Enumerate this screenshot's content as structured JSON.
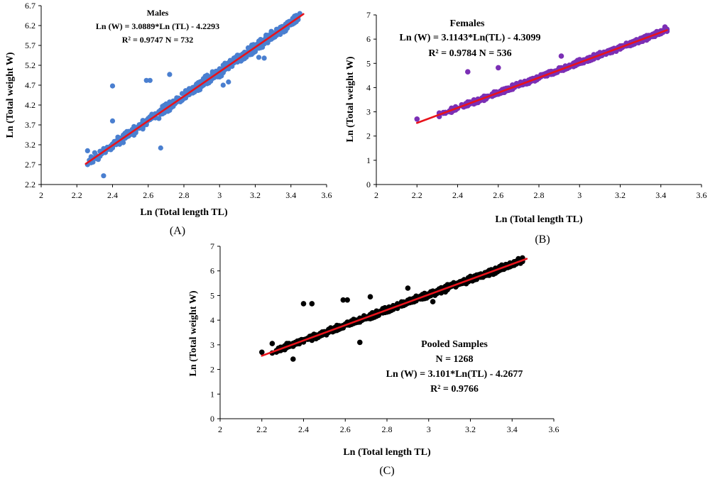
{
  "chart_data": [
    {
      "type": "scatter",
      "panel": "(A)",
      "xlabel": "Ln (Total length TL)",
      "ylabel": "Ln (Total weight W)",
      "xlim": [
        2,
        3.6
      ],
      "ylim": [
        2.2,
        6.7
      ],
      "xticks": [
        "2",
        "2.2",
        "2.4",
        "2.6",
        "2.8",
        "3",
        "3.2",
        "3.4",
        "3.6"
      ],
      "yticks": [
        "2.2",
        "2.7",
        "3.2",
        "3.7",
        "4.2",
        "4.7",
        "5.2",
        "5.7",
        "6.2",
        "6.7"
      ],
      "annotations": [
        "Males",
        "Ln (W) = 3.0889*Ln (TL) - 4.2293",
        "R² = 0.9747  N = 732"
      ],
      "point_color": "#4a7fd0",
      "line_color": "#e8131b",
      "regression": {
        "slope": 3.0889,
        "intercept": -4.2293,
        "x_range": [
          2.25,
          3.47
        ]
      },
      "series": [
        {
          "name": "Males",
          "x_range": [
            2.25,
            3.45
          ],
          "residual_sd": 0.09
        }
      ],
      "outliers": [
        {
          "x": 2.4,
          "y": 4.68
        },
        {
          "x": 2.4,
          "y": 3.8
        },
        {
          "x": 2.35,
          "y": 2.42
        },
        {
          "x": 2.59,
          "y": 4.82
        },
        {
          "x": 2.61,
          "y": 4.82
        },
        {
          "x": 2.67,
          "y": 3.12
        },
        {
          "x": 2.72,
          "y": 4.97
        },
        {
          "x": 2.26,
          "y": 3.05
        },
        {
          "x": 2.3,
          "y": 3.0
        },
        {
          "x": 3.02,
          "y": 4.7
        },
        {
          "x": 3.05,
          "y": 4.78
        },
        {
          "x": 3.22,
          "y": 5.4
        },
        {
          "x": 3.25,
          "y": 5.38
        },
        {
          "x": 2.93,
          "y": 4.95
        }
      ]
    },
    {
      "type": "scatter",
      "panel": "(B)",
      "xlabel": "Ln (Total length TL)",
      "ylabel": "Ln (Total weight W)",
      "xlim": [
        2,
        3.6
      ],
      "ylim": [
        0,
        7
      ],
      "xticks": [
        "2",
        "2.2",
        "2.4",
        "2.6",
        "2.8",
        "3",
        "3.2",
        "3.4",
        "3.6"
      ],
      "yticks": [
        "0",
        "1",
        "2",
        "3",
        "4",
        "5",
        "6",
        "7"
      ],
      "annotations": [
        "Females",
        "Ln (W) = 3.1143*Ln(TL) - 4.3099",
        "R² = 0.9784 N =  536"
      ],
      "point_color": "#7b2fb5",
      "line_color": "#e8131b",
      "regression": {
        "slope": 3.1143,
        "intercept": -4.3099,
        "x_range": [
          2.2,
          3.43
        ]
      },
      "series": [
        {
          "name": "Females",
          "x_range": [
            2.3,
            3.43
          ],
          "residual_sd": 0.08
        }
      ],
      "outliers": [
        {
          "x": 2.2,
          "y": 2.7
        },
        {
          "x": 2.45,
          "y": 4.65
        },
        {
          "x": 2.6,
          "y": 4.82
        },
        {
          "x": 2.91,
          "y": 5.3
        },
        {
          "x": 3.42,
          "y": 6.5
        }
      ]
    },
    {
      "type": "scatter",
      "panel": "(C)",
      "xlabel": "Ln (Total length TL)",
      "ylabel": "Ln (Total weight W)",
      "xlim": [
        2,
        3.6
      ],
      "ylim": [
        0,
        7
      ],
      "xticks": [
        "2",
        "2.2",
        "2.4",
        "2.6",
        "2.8",
        "3",
        "3.2",
        "3.4",
        "3.6"
      ],
      "yticks": [
        "0",
        "1",
        "2",
        "3",
        "4",
        "5",
        "6",
        "7"
      ],
      "annotations": [
        "Pooled Samples",
        "N = 1268",
        "Ln (W) = 3.101*Ln(TL) - 4.2677",
        "R² = 0.9766"
      ],
      "point_color": "#000000",
      "line_color": "#e8131b",
      "regression": {
        "slope": 3.101,
        "intercept": -4.2677,
        "x_range": [
          2.2,
          3.47
        ]
      },
      "series": [
        {
          "name": "Pooled Samples",
          "x_range": [
            2.25,
            3.45
          ],
          "residual_sd": 0.09
        }
      ],
      "outliers": [
        {
          "x": 2.2,
          "y": 2.7
        },
        {
          "x": 2.25,
          "y": 3.05
        },
        {
          "x": 2.3,
          "y": 2.9
        },
        {
          "x": 2.35,
          "y": 2.42
        },
        {
          "x": 2.4,
          "y": 4.67
        },
        {
          "x": 2.44,
          "y": 4.67
        },
        {
          "x": 2.59,
          "y": 4.82
        },
        {
          "x": 2.61,
          "y": 4.82
        },
        {
          "x": 2.67,
          "y": 3.1
        },
        {
          "x": 2.72,
          "y": 4.95
        },
        {
          "x": 2.9,
          "y": 5.3
        },
        {
          "x": 3.02,
          "y": 4.75
        }
      ]
    }
  ]
}
